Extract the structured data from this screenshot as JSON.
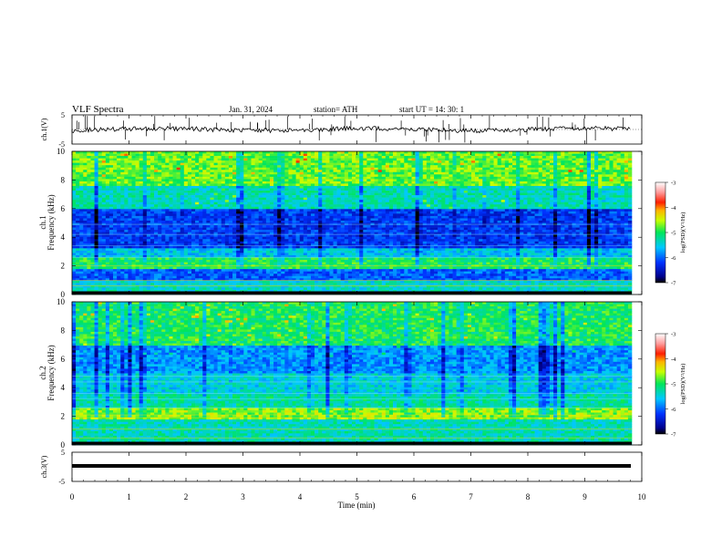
{
  "header": {
    "title": "VLF  Spectra",
    "date": "Jan. 31, 2024",
    "station": "station= ATH",
    "start": "start  UT  =    14: 30: 1"
  },
  "chart_data": [
    {
      "type": "line",
      "panel": "ch1-waveform",
      "ylabel": "ch.1(V)",
      "ylim": [
        -5,
        5
      ],
      "yticks": [
        "5",
        "-5"
      ],
      "xlim": [
        0,
        10
      ],
      "color": "#000000"
    },
    {
      "type": "heatmap",
      "panel": "ch1-spectrogram",
      "ylabel_line1": "ch.1",
      "ylabel_line2": "Frequency  (kHz)",
      "ylim": [
        0,
        10
      ],
      "yticks": [
        "0",
        "2",
        "4",
        "6",
        "8",
        "10"
      ],
      "xlim": [
        0,
        9.8
      ],
      "colorbar": {
        "label": "log(PSD)(V²/Hz)",
        "ticks": [
          "-3",
          "-4",
          "-5",
          "-6",
          "-7"
        ],
        "range": [
          -7,
          -3
        ]
      }
    },
    {
      "type": "heatmap",
      "panel": "ch2-spectrogram",
      "ylabel_line1": "ch.2",
      "ylabel_line2": "Frequency  (kHz)",
      "ylim": [
        0,
        10
      ],
      "yticks": [
        "0",
        "2",
        "4",
        "6",
        "8",
        "10"
      ],
      "xlim": [
        0,
        9.8
      ],
      "colorbar": {
        "label": "log(PSD)(V²/Hz)",
        "ticks": [
          "-3",
          "-4",
          "-5",
          "-6",
          "-7"
        ],
        "range": [
          -7,
          -3
        ]
      }
    },
    {
      "type": "line",
      "panel": "ch3-waveform",
      "ylabel": "ch.3(V)",
      "ylim": [
        -5,
        5
      ],
      "yticks": [
        "5",
        "-5"
      ],
      "xlim": [
        0,
        10
      ],
      "color": "#000000"
    }
  ],
  "xaxis": {
    "label": "Time  (min)",
    "ticks": [
      "0",
      "1",
      "2",
      "3",
      "4",
      "5",
      "6",
      "7",
      "8",
      "9",
      "10"
    ]
  }
}
